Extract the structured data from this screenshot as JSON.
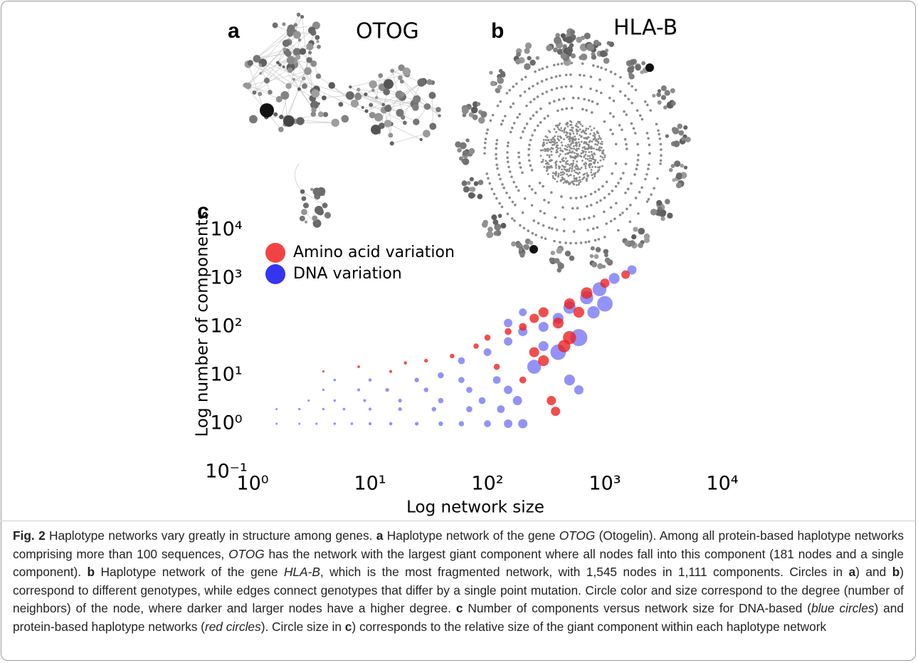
{
  "panel_a": {
    "label": "a",
    "title": "OTOG"
  },
  "panel_b": {
    "label": "b",
    "title": "HLA-B"
  },
  "chart_data": {
    "type": "scatter",
    "panel_label": "c",
    "xlabel": "Log network size",
    "ylabel": "Log number of components",
    "log_scale": true,
    "xlim": [
      1,
      10000
    ],
    "ylim": [
      0.1,
      10000
    ],
    "xticks": [
      {
        "value": 1,
        "label": "10⁰"
      },
      {
        "value": 10,
        "label": "10¹"
      },
      {
        "value": 100,
        "label": "10²"
      },
      {
        "value": 1000,
        "label": "10³"
      },
      {
        "value": 10000,
        "label": "10⁴"
      }
    ],
    "yticks": [
      {
        "value": 0.1,
        "label": "10⁻¹"
      },
      {
        "value": 1,
        "label": "10⁰"
      },
      {
        "value": 10,
        "label": "10¹"
      },
      {
        "value": 100,
        "label": "10²"
      },
      {
        "value": 1000,
        "label": "10³"
      },
      {
        "value": 10000,
        "label": "10⁴"
      }
    ],
    "series": [
      {
        "name": "DNA variation",
        "color": "#1010ee",
        "x": [
          1.6,
          2.5,
          3.5,
          5,
          7,
          10,
          15,
          25,
          40,
          60,
          100,
          150,
          200,
          1.6,
          2.5,
          4,
          6,
          10,
          18,
          35,
          70,
          130,
          3,
          5,
          9,
          18,
          40,
          90,
          180,
          4,
          8,
          14,
          30,
          70,
          150,
          5,
          10,
          25,
          60,
          120,
          40,
          60,
          100,
          150,
          200,
          300,
          400,
          500,
          700,
          900,
          1200,
          1700,
          250,
          400,
          600,
          800,
          500,
          600,
          300,
          200,
          150,
          1000
        ],
        "y": [
          1,
          1,
          1,
          1,
          1,
          1,
          1,
          1,
          1,
          1,
          1,
          1,
          1,
          2,
          2,
          2,
          2,
          2,
          2,
          2,
          2,
          2,
          3,
          3,
          3,
          3,
          3,
          3,
          3,
          5,
          5,
          5,
          5,
          5,
          5,
          8,
          8,
          8,
          8,
          8,
          10,
          20,
          30,
          50,
          80,
          100,
          150,
          250,
          400,
          600,
          1000,
          1500,
          15,
          30,
          60,
          200,
          8,
          5,
          40,
          200,
          120,
          300
        ],
        "sizes": [
          0.05,
          0.05,
          0.06,
          0.07,
          0.08,
          0.1,
          0.12,
          0.15,
          0.2,
          0.25,
          0.35,
          0.45,
          0.5,
          0.05,
          0.06,
          0.07,
          0.08,
          0.1,
          0.15,
          0.2,
          0.3,
          0.4,
          0.05,
          0.07,
          0.1,
          0.15,
          0.25,
          0.35,
          0.5,
          0.06,
          0.1,
          0.15,
          0.2,
          0.3,
          0.45,
          0.08,
          0.12,
          0.2,
          0.3,
          0.4,
          0.3,
          0.35,
          0.4,
          0.45,
          0.5,
          0.55,
          0.6,
          0.7,
          0.75,
          0.8,
          0.6,
          0.5,
          0.8,
          0.9,
          1,
          0.7,
          0.6,
          0.5,
          0.55,
          0.4,
          0.45,
          0.9
        ]
      },
      {
        "name": "Amino acid variation",
        "color": "#ee2222",
        "x": [
          4,
          8,
          15,
          20,
          30,
          50,
          80,
          100,
          150,
          200,
          250,
          300,
          400,
          500,
          700,
          1000,
          1500,
          350,
          380,
          300,
          250,
          450,
          500,
          200,
          120,
          600
        ],
        "y": [
          12,
          15,
          12,
          18,
          20,
          25,
          40,
          60,
          80,
          100,
          150,
          200,
          120,
          300,
          500,
          800,
          1200,
          3,
          1.8,
          20,
          30,
          40,
          60,
          8,
          15,
          200
        ],
        "sizes": [
          0.05,
          0.08,
          0.1,
          0.12,
          0.15,
          0.2,
          0.25,
          0.3,
          0.35,
          0.4,
          0.5,
          0.55,
          0.6,
          0.6,
          0.65,
          0.5,
          0.45,
          0.5,
          0.5,
          0.6,
          0.55,
          0.7,
          0.75,
          0.35,
          0.3,
          0.6
        ]
      }
    ]
  },
  "caption": [
    "Fig. 2",
    " Haplotype networks vary greatly in structure among genes. ",
    "a",
    " Haplotype network of the gene ",
    "OTOG",
    " (Otogelin). Among all protein-based haplotype networks comprising more than 100 sequences, ",
    "OTOG",
    " has the network with the largest giant component where all nodes fall into this component (181 nodes and a single component). ",
    "b",
    " Haplotype network of the gene ",
    "HLA-B",
    ", which is the most fragmented network, with 1,545 nodes in 1,111 components. Circles in ",
    "a",
    ") and ",
    "b",
    ") correspond to different genotypes, while edges connect genotypes that differ by a single point mutation. Circle color and size correspond to the degree (number of neighbors) of the node, where darker and larger nodes have a higher degree. ",
    "c",
    " Number of components versus network size for DNA-based (",
    "blue circles",
    ") and protein-based haplotype networks (",
    "red circles",
    "). Circle size in ",
    "c",
    ") corresponds to the relative size of the giant component within each haplotype network"
  ]
}
